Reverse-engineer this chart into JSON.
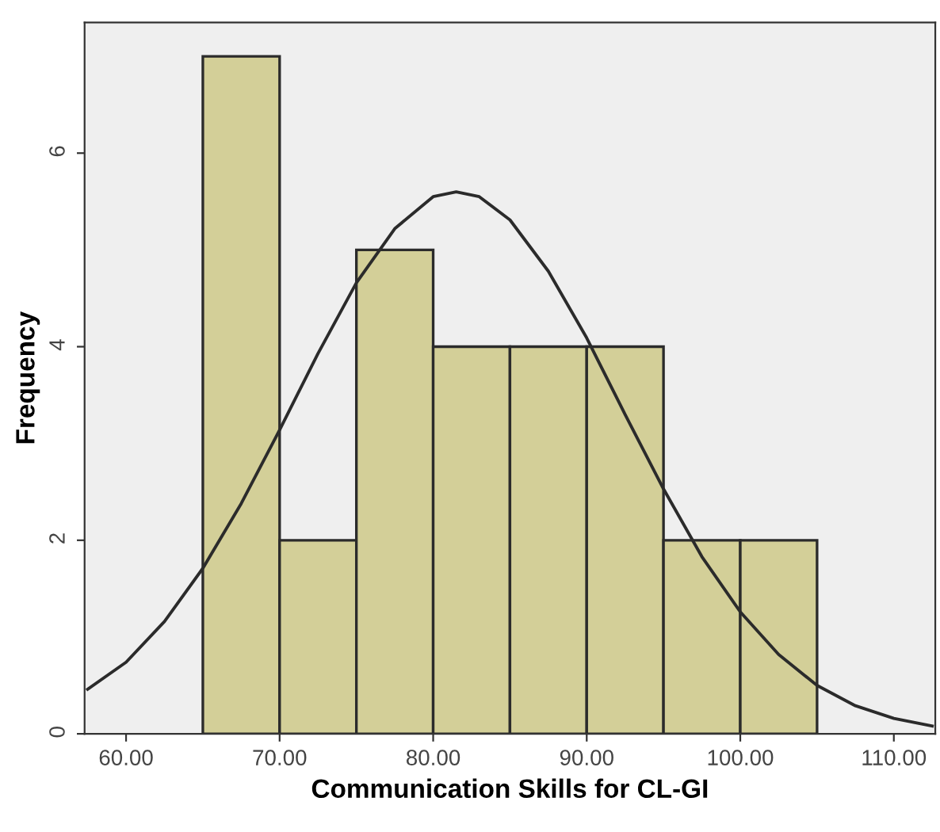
{
  "chart_data": {
    "type": "histogram",
    "xlabel": "Communication Skills for CL-GI",
    "ylabel": "Frequency",
    "bins": [
      65,
      70,
      75,
      80,
      85,
      90,
      95,
      100,
      105
    ],
    "values": [
      7,
      2,
      5,
      4,
      4,
      4,
      2,
      2
    ],
    "color": "#d3cf98",
    "series": [
      {
        "type": "line",
        "color": "#2b2b2b",
        "x": [
          57.5,
          60,
          62.5,
          65,
          67.5,
          70,
          72.5,
          75,
          77.5,
          80,
          81.5,
          83,
          85,
          87.5,
          90,
          92.5,
          95,
          97.5,
          100,
          102.5,
          105,
          107.5,
          110,
          112.5
        ],
        "values": [
          0.46,
          0.74,
          1.16,
          1.71,
          2.38,
          3.14,
          3.93,
          4.66,
          5.22,
          5.55,
          5.6,
          5.55,
          5.31,
          4.78,
          4.09,
          3.3,
          2.53,
          1.83,
          1.26,
          0.82,
          0.5,
          0.29,
          0.16,
          0.08
        ]
      }
    ],
    "xlim": [
      57.3,
      112.7
    ],
    "ylim": [
      0,
      7.35
    ],
    "xticks": [
      {
        "value": 60,
        "label": "60.00"
      },
      {
        "value": 70,
        "label": "70.00"
      },
      {
        "value": 80,
        "label": "80.00"
      },
      {
        "value": 90,
        "label": "90.00"
      },
      {
        "value": 100,
        "label": "100.00"
      },
      {
        "value": 110,
        "label": "110.00"
      }
    ],
    "yticks": [
      0,
      2,
      4,
      6
    ],
    "grid": false,
    "legend": false
  }
}
